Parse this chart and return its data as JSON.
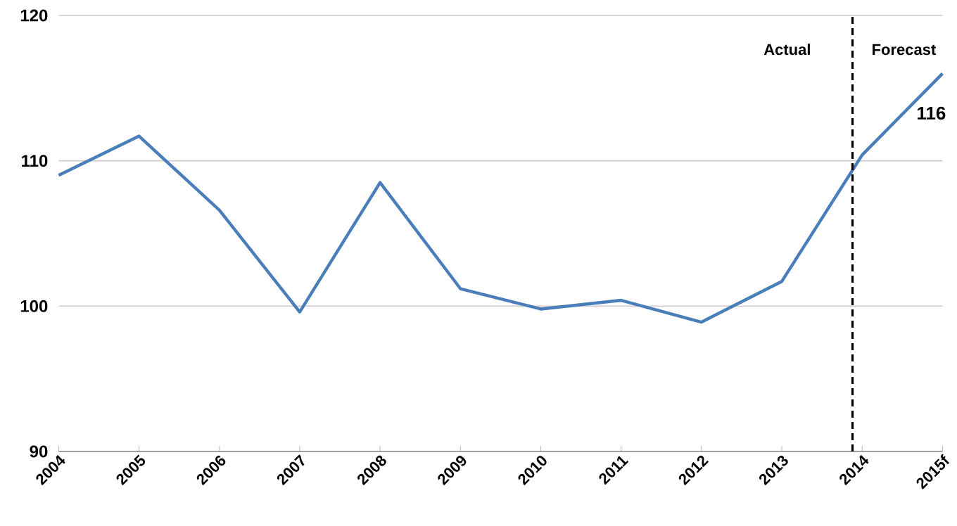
{
  "chart_data": {
    "type": "line",
    "x": [
      2004,
      2005,
      2006,
      2007,
      2008,
      2009,
      2010,
      2011,
      2012,
      2013,
      2014,
      2015
    ],
    "series": [
      {
        "color": "#4a7ebb",
        "values": [
          109.0,
          111.7,
          106.6,
          99.6,
          108.5,
          101.2,
          99.8,
          100.4,
          98.9,
          101.7,
          110.4,
          116
        ],
        "value_labels": [
          null,
          null,
          null,
          null,
          null,
          null,
          null,
          null,
          null,
          null,
          null,
          "116"
        ]
      }
    ],
    "xlim": [
      2004,
      2015
    ],
    "xticks": [
      2004,
      2005,
      2006,
      2007,
      2008,
      2009,
      2010,
      2011,
      2012,
      2013,
      2014,
      {
        "value": 2015,
        "label": "2015f"
      }
    ],
    "ylim": [
      90,
      120
    ],
    "yticks": [
      90,
      100,
      110,
      120
    ],
    "grid": "y",
    "ref_lines": [
      {
        "axis": "x",
        "value": 2013.88,
        "color": "#000000",
        "line_style": "dashed"
      }
    ],
    "annotations": [
      "Actual",
      "Forecast"
    ],
    "marker": "none",
    "line_style": "solid"
  }
}
